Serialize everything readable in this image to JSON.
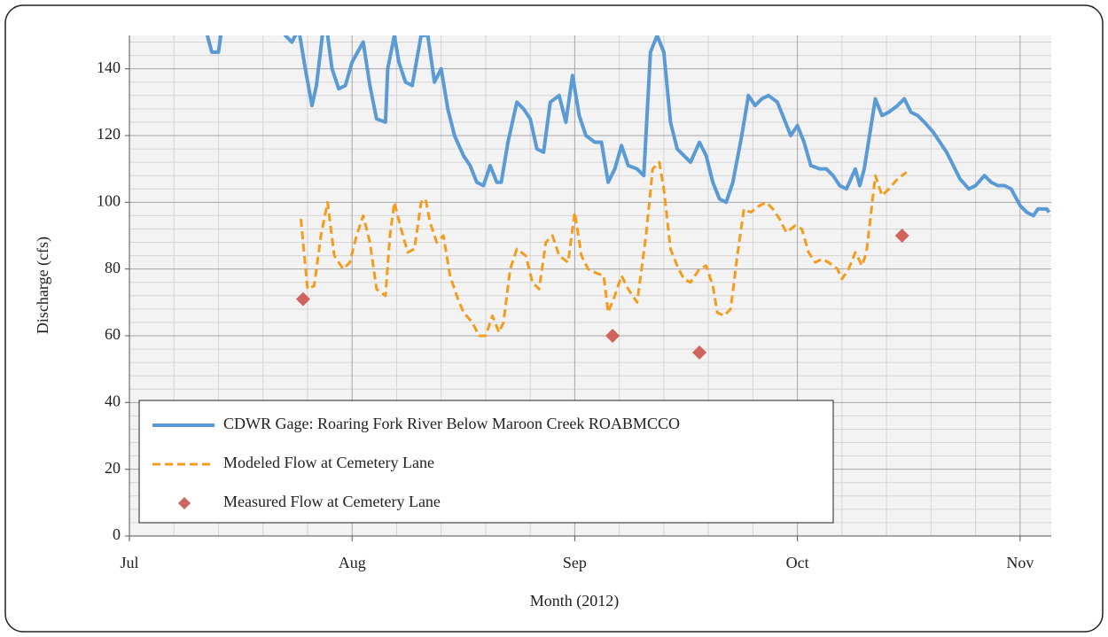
{
  "chart_data": {
    "type": "line",
    "x_label": "Month (2012)",
    "y_label": "Discharge (cfs)",
    "xlim": [
      0,
      4.14
    ],
    "xticks": [
      {
        "value": 0,
        "label": "Jul"
      },
      {
        "value": 1,
        "label": "Aug"
      },
      {
        "value": 2,
        "label": "Sep"
      },
      {
        "value": 3,
        "label": "Oct"
      },
      {
        "value": 4,
        "label": "Nov"
      }
    ],
    "ylim": [
      0,
      150
    ],
    "yticks": [
      0,
      20,
      40,
      60,
      80,
      100,
      120,
      140
    ],
    "grid": true,
    "minor_grid": true,
    "legend": "bottom-left",
    "series": [
      {
        "name": "CDWR Gage: Roaring Fork River Below Maroon Creek ROABMCCO",
        "color": "#5b9bd5",
        "style": "solid",
        "x": [
          0.31,
          0.35,
          0.37,
          0.4,
          0.42,
          0.55,
          0.7,
          0.73,
          0.76,
          0.79,
          0.82,
          0.84,
          0.87,
          0.88,
          0.91,
          0.94,
          0.97,
          1.0,
          1.05,
          1.08,
          1.11,
          1.15,
          1.16,
          1.19,
          1.21,
          1.24,
          1.27,
          1.31,
          1.34,
          1.37,
          1.4,
          1.43,
          1.46,
          1.5,
          1.53,
          1.56,
          1.59,
          1.62,
          1.65,
          1.67,
          1.7,
          1.74,
          1.77,
          1.8,
          1.83,
          1.86,
          1.89,
          1.93,
          1.96,
          1.99,
          2.02,
          2.05,
          2.09,
          2.12,
          2.15,
          2.18,
          2.21,
          2.24,
          2.28,
          2.31,
          2.34,
          2.37,
          2.4,
          2.43,
          2.46,
          2.49,
          2.52,
          2.56,
          2.59,
          2.62,
          2.65,
          2.68,
          2.71,
          2.75,
          2.78,
          2.81,
          2.84,
          2.87,
          2.91,
          2.94,
          2.97,
          3.0,
          3.03,
          3.06,
          3.1,
          3.13,
          3.16,
          3.19,
          3.22,
          3.26,
          3.28,
          3.3,
          3.35,
          3.38,
          3.41,
          3.45,
          3.48,
          3.51,
          3.54,
          3.57,
          3.61,
          3.64,
          3.67,
          3.7,
          3.73,
          3.77,
          3.8,
          3.84,
          3.87,
          3.9,
          3.93,
          3.96,
          4.0,
          4.03,
          4.06,
          4.08,
          4.12,
          4.13
        ],
        "values": [
          160,
          150,
          145,
          145,
          155,
          175,
          150,
          148,
          152,
          140,
          129,
          135,
          152,
          155,
          140,
          134,
          135,
          142,
          148,
          135,
          125,
          124,
          140,
          150,
          142,
          136,
          135,
          150,
          150,
          136,
          140,
          128,
          120,
          114,
          111,
          106,
          105,
          111,
          106,
          106,
          118,
          130,
          128,
          125,
          116,
          115,
          130,
          132,
          124,
          138,
          126,
          120,
          118,
          118,
          106,
          110,
          117,
          111,
          110,
          108,
          145,
          150,
          145,
          124,
          116,
          114,
          112,
          118,
          114,
          106,
          101,
          100,
          106,
          120,
          132,
          129,
          131,
          132,
          130,
          125,
          120,
          123,
          118,
          111,
          110,
          110,
          108,
          105,
          104,
          110,
          105,
          110,
          131,
          126,
          127,
          129,
          131,
          127,
          126,
          124,
          121,
          118,
          115,
          111,
          107,
          104,
          105,
          108,
          106,
          105,
          105,
          104,
          99,
          97,
          96,
          98,
          98,
          97
        ]
      },
      {
        "name": "Modeled Flow at Cemetery Lane",
        "color": "#f39c1e",
        "style": "dashed",
        "x": [
          0.77,
          0.8,
          0.83,
          0.86,
          0.89,
          0.92,
          0.96,
          0.99,
          1.02,
          1.05,
          1.08,
          1.11,
          1.15,
          1.17,
          1.19,
          1.22,
          1.25,
          1.28,
          1.31,
          1.33,
          1.35,
          1.38,
          1.41,
          1.44,
          1.47,
          1.5,
          1.54,
          1.57,
          1.6,
          1.63,
          1.66,
          1.68,
          1.71,
          1.74,
          1.78,
          1.81,
          1.84,
          1.87,
          1.9,
          1.93,
          1.97,
          2.0,
          2.03,
          2.06,
          2.09,
          2.13,
          2.15,
          2.18,
          2.21,
          2.24,
          2.28,
          2.32,
          2.35,
          2.38,
          2.4,
          2.43,
          2.46,
          2.49,
          2.52,
          2.56,
          2.59,
          2.62,
          2.64,
          2.67,
          2.7,
          2.73,
          2.76,
          2.79,
          2.83,
          2.86,
          2.89,
          2.92,
          2.95,
          2.99,
          3.02,
          3.05,
          3.08,
          3.11,
          3.14,
          3.18,
          3.2,
          3.23,
          3.26,
          3.29,
          3.31,
          3.35,
          3.38,
          3.41,
          3.45,
          3.49
        ],
        "values": [
          95,
          74,
          75,
          90,
          100,
          84,
          80,
          82,
          90,
          96,
          88,
          74,
          72,
          90,
          100,
          92,
          85,
          86,
          100,
          101,
          94,
          88,
          90,
          78,
          72,
          67,
          64,
          60,
          60,
          66,
          61,
          64,
          80,
          86,
          84,
          76,
          74,
          88,
          90,
          84,
          82,
          97,
          84,
          80,
          79,
          78,
          67,
          72,
          78,
          74,
          70,
          90,
          110,
          112,
          104,
          86,
          81,
          77,
          76,
          80,
          81,
          75,
          67,
          66,
          68,
          84,
          98,
          97,
          99,
          100,
          98,
          95,
          91,
          93,
          92,
          85,
          82,
          83,
          82,
          80,
          77,
          80,
          85,
          81,
          85,
          108,
          102,
          104,
          107,
          109
        ]
      },
      {
        "name": "Measured Flow at Cemetery Lane",
        "color": "#d0635c",
        "style": "marker",
        "x": [
          0.78,
          2.17,
          2.56,
          3.47
        ],
        "values": [
          71,
          60,
          55,
          90
        ]
      }
    ]
  }
}
